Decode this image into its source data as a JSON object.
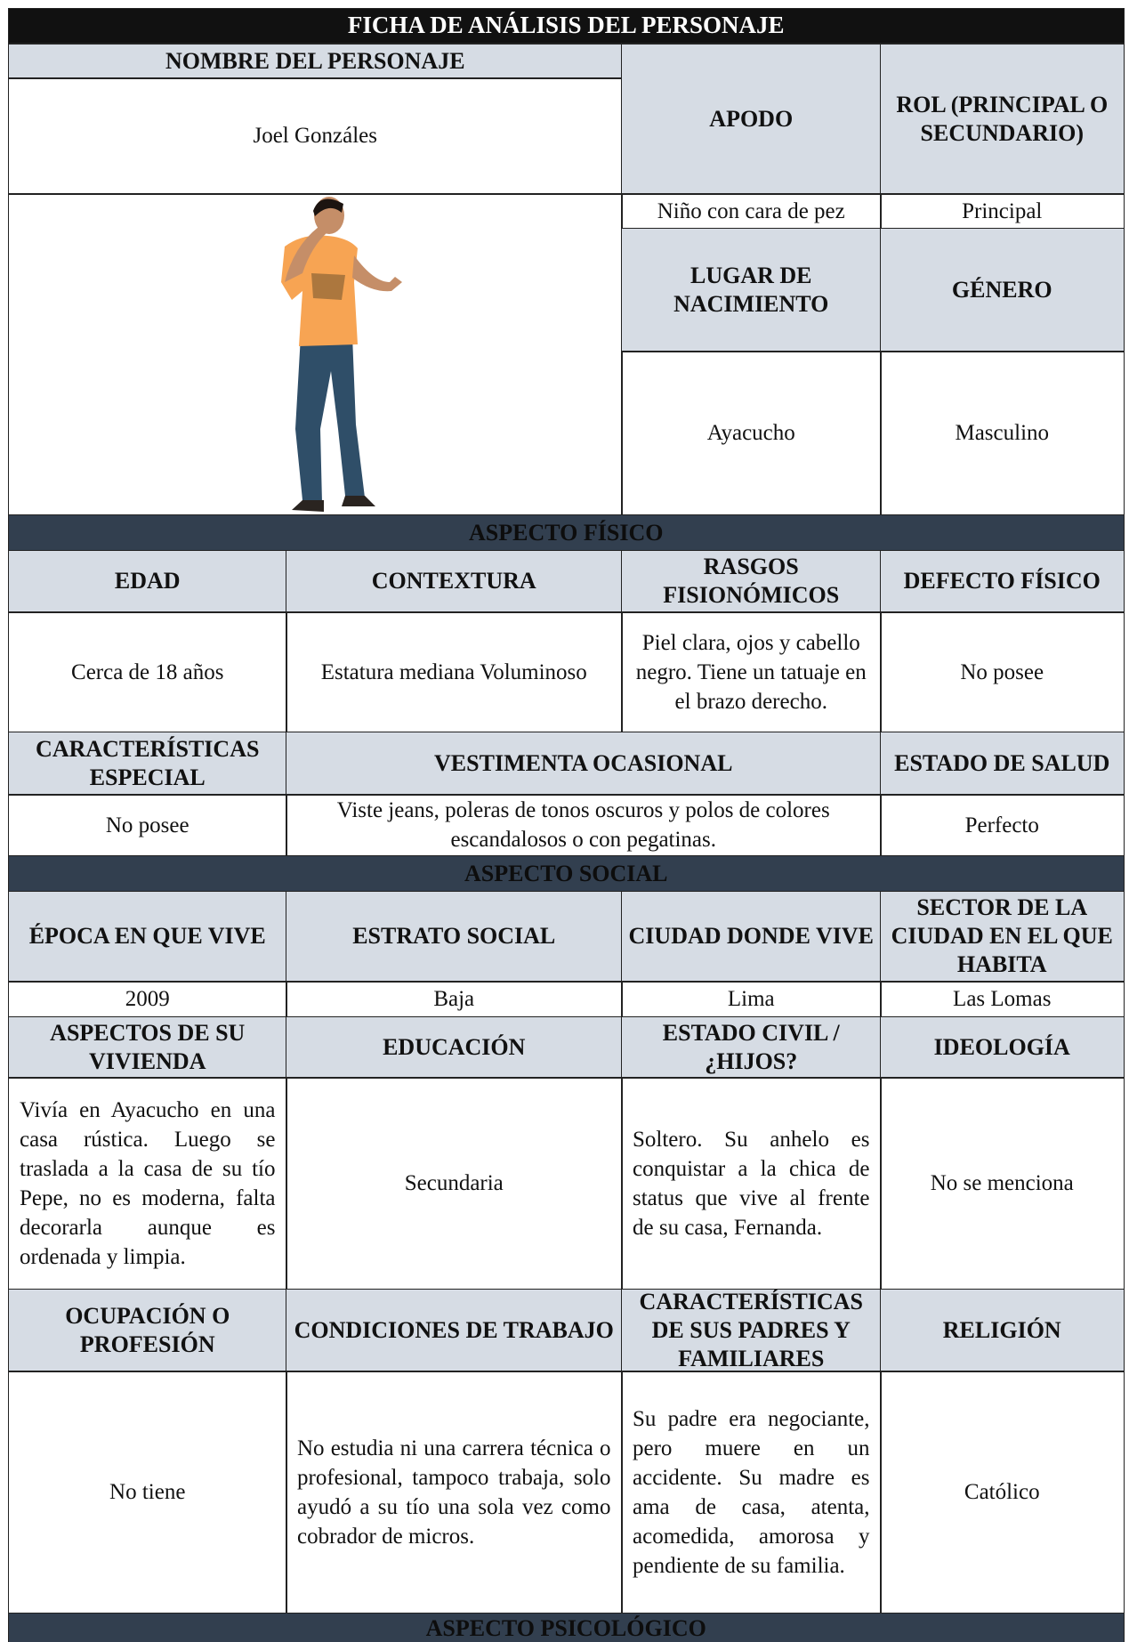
{
  "title": "FICHA DE ANÁLISIS DEL PERSONAJE",
  "identity": {
    "name_label": "NOMBRE DEL PERSONAJE",
    "name": "Joel Gonzáles",
    "nickname_label": "APODO",
    "nickname": "Niño con cara de pez",
    "role_label": "ROL (PRINCIPAL O SECUNDARIO)",
    "role": "Principal",
    "birthplace_label": "LUGAR DE NACIMIENTO",
    "birthplace": "Ayacucho",
    "gender_label": "GÉNERO",
    "gender": "Masculino"
  },
  "physical": {
    "heading": "ASPECTO FÍSICO",
    "age_label": "EDAD",
    "age": "Cerca de 18 años",
    "build_label": "CONTEXTURA",
    "build": "Estatura mediana Voluminoso",
    "features_label": "RASGOS FISIONÓMICOS",
    "features": "Piel clara, ojos y cabello negro. Tiene un tatuaje en el brazo derecho.",
    "defect_label": "DEFECTO FÍSICO",
    "defect": "No posee",
    "special_label": "CARACTERÍSTICAS ESPECIAL",
    "special": "No posee",
    "clothing_label": "VESTIMENTA OCASIONAL",
    "clothing": "Viste jeans, poleras de tonos oscuros y polos de colores escandalosos o con pegatinas.",
    "health_label": "ESTADO DE SALUD",
    "health": "Perfecto"
  },
  "social": {
    "heading": "ASPECTO SOCIAL",
    "era_label": "ÉPOCA EN QUE VIVE",
    "era": "2009",
    "stratum_label": "ESTRATO SOCIAL",
    "stratum": "Baja",
    "city_label": "CIUDAD DONDE VIVE",
    "city": "Lima",
    "sector_label": "SECTOR DE LA CIUDAD EN EL QUE HABITA",
    "sector": "Las Lomas",
    "housing_label": "ASPECTOS DE SU VIVIENDA",
    "housing": "Vivía en Ayacucho en una casa rústica. Luego se traslada a la casa de su tío Pepe, no es moderna, falta decorarla aunque es ordenada y limpia.",
    "education_label": "EDUCACIÓN",
    "education": "Secundaria",
    "civil_label": "ESTADO CIVIL / ¿HIJOS?",
    "civil": "Soltero. Su anhelo es conquistar a la chica de status que vive al frente de su casa, Fernanda.",
    "ideology_label": "IDEOLOGÍA",
    "ideology": "No se menciona",
    "occupation_label": "OCUPACIÓN O PROFESIÓN",
    "occupation": "No tiene",
    "work_label": "CONDICIONES DE TRABAJO",
    "work": "No estudia ni una carrera técnica o profesional, tampoco trabaja, solo ayudó a su tío una sola vez como cobrador de micros.",
    "family_label": "CARACTERÍSTICAS DE SUS PADRES Y FAMILIARES",
    "family": "Su padre era negociante, pero muere en un accidente. Su madre es ama de casa, atenta, acomedida, amorosa y pendiente de su familia.",
    "religion_label": "RELIGIÓN",
    "religion": "Católico"
  },
  "psychological": {
    "heading": "ASPECTO PSICOLÓGICO"
  }
}
